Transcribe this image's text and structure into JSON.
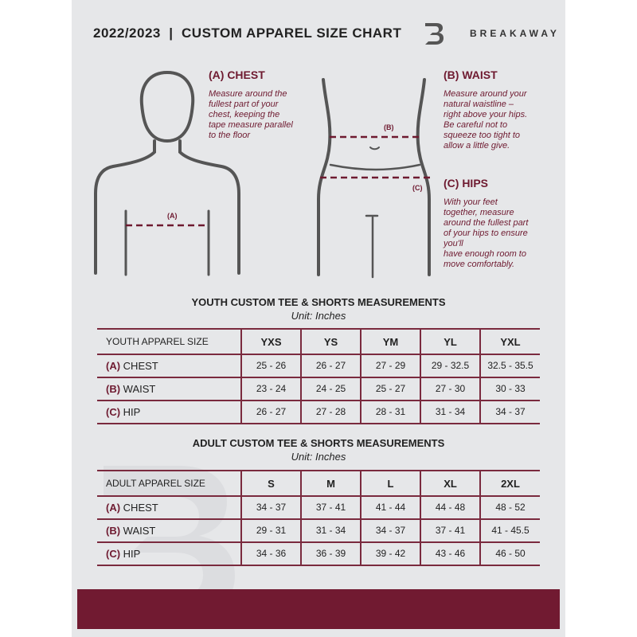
{
  "header": {
    "title": "2022/2023  |  CUSTOM APPAREL SIZE CHART",
    "brand": "BREAKAWAY",
    "logo_letter": "B"
  },
  "chest": {
    "heading": "(A) CHEST",
    "marker": "(A)",
    "lines": [
      "Measure around the",
      "fullest part of your",
      "chest, keeping the",
      "tape measure parallel",
      "to the floor"
    ]
  },
  "waist": {
    "heading": "(B) WAIST",
    "marker": "(B)",
    "lines": [
      "Measure around your",
      "natural waistline –",
      "right above your hips.",
      "Be careful not to",
      "squeeze too tight to",
      "allow a little give."
    ]
  },
  "hips": {
    "heading": "(C) HIPS",
    "marker": "(C)",
    "lines": [
      "With your feet",
      "together, measure",
      "around the fullest part",
      "of your hips to ensure",
      "you'll",
      "have enough room to",
      "move comfortably."
    ]
  },
  "youth": {
    "title": "YOUTH CUSTOM TEE & SHORTS MEASUREMENTS",
    "unit": "Unit: Inches",
    "size_label": "YOUTH APPAREL SIZE",
    "sizes": [
      "YXS",
      "YS",
      "YM",
      "YL",
      "YXL"
    ],
    "rows": [
      {
        "letter": "(A)",
        "name": "CHEST",
        "values": [
          "25 - 26",
          "26 - 27",
          "27 - 29",
          "29 - 32.5",
          "32.5 - 35.5"
        ]
      },
      {
        "letter": "(B)",
        "name": "WAIST",
        "values": [
          "23 - 24",
          "24 - 25",
          "25 - 27",
          "27 - 30",
          "30 - 33"
        ]
      },
      {
        "letter": "(C)",
        "name": "HIP",
        "values": [
          "26 - 27",
          "27 - 28",
          "28 - 31",
          "31 - 34",
          "34 - 37"
        ]
      }
    ]
  },
  "adult": {
    "title": "ADULT CUSTOM TEE & SHORTS MEASUREMENTS",
    "unit": "Unit: Inches",
    "size_label": "ADULT APPAREL SIZE",
    "sizes": [
      "S",
      "M",
      "L",
      "XL",
      "2XL"
    ],
    "rows": [
      {
        "letter": "(A)",
        "name": "CHEST",
        "values": [
          "34 - 37",
          "37 - 41",
          "41 - 44",
          "44 - 48",
          "48 - 52"
        ]
      },
      {
        "letter": "(B)",
        "name": "WAIST",
        "values": [
          "29 - 31",
          "31 - 34",
          "34 - 37",
          "37 - 41",
          "41 - 45.5"
        ]
      },
      {
        "letter": "(C)",
        "name": "HIP",
        "values": [
          "34 - 36",
          "36 - 39",
          "39 - 42",
          "43 - 46",
          "46 - 50"
        ]
      }
    ]
  },
  "colors": {
    "accent": "#6e1a30",
    "background": "#e6e7e9"
  }
}
